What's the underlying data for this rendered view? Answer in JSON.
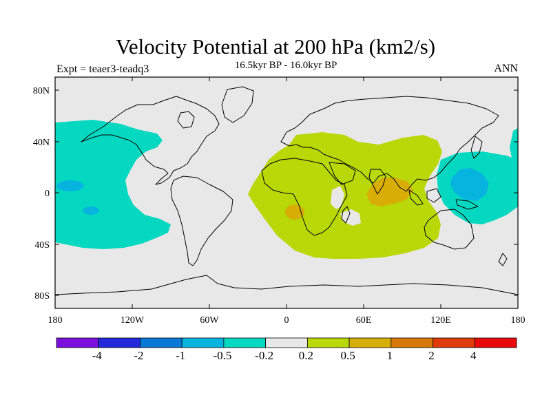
{
  "title": "Velocity Potential at 200 hPa (km2/s)",
  "subtitle": "16.5kyr BP - 16.0kyr BP",
  "left_string": "Expt = teaer3-teadq3",
  "right_string": "ANN",
  "axes": {
    "lon_labels": [
      "180",
      "120W",
      "60W",
      "0",
      "60E",
      "120E",
      "180"
    ],
    "lat_labels": [
      "80N",
      "40N",
      "0",
      "40S",
      "80S"
    ]
  },
  "colorbar": {
    "labels": [
      "-4",
      "-2",
      "-1",
      "-0.5",
      "-0.2",
      "0.2",
      "0.5",
      "1",
      "2",
      "4"
    ],
    "colors": [
      "#7b10dc",
      "#2328d8",
      "#0a78d6",
      "#07b4e0",
      "#05d8c0",
      "#e8e8e8",
      "#b8d808",
      "#d8ae06",
      "#d87808",
      "#e03a08",
      "#e80a0a"
    ]
  },
  "colors": {
    "land_mask": "#e8e8e8",
    "negative_weak": "#05d8c0",
    "negative_mid": "#07b4e0",
    "positive_weak": "#b8d808",
    "positive_mid": "#d8ae06"
  }
}
